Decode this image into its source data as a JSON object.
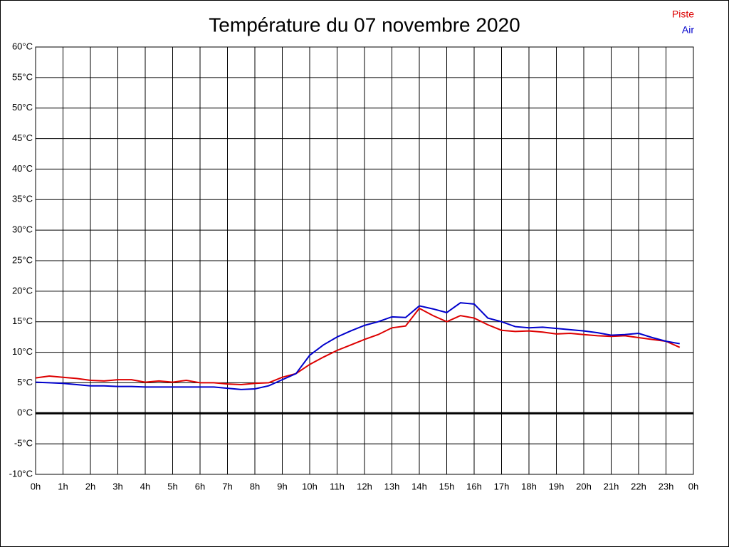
{
  "chart_data": {
    "type": "line",
    "title": "Température du 07 novembre 2020",
    "x": [
      0,
      0.5,
      1,
      1.5,
      2,
      2.5,
      3,
      3.5,
      4,
      4.5,
      5,
      5.5,
      6,
      6.5,
      7,
      7.5,
      8,
      8.5,
      9,
      9.5,
      10,
      10.5,
      11,
      11.5,
      12,
      12.5,
      13,
      13.5,
      14,
      14.5,
      15,
      15.5,
      16,
      16.5,
      17,
      17.5,
      18,
      18.5,
      19,
      19.5,
      20,
      20.5,
      21,
      21.5,
      22,
      22.5,
      23,
      23.5
    ],
    "series": [
      {
        "name": "Piste",
        "color": "#dd0000",
        "values": [
          5.8,
          6.1,
          5.9,
          5.7,
          5.4,
          5.3,
          5.5,
          5.5,
          5.1,
          5.3,
          5.1,
          5.4,
          5.0,
          5.0,
          4.8,
          4.7,
          4.9,
          5.0,
          5.9,
          6.5,
          8.0,
          9.2,
          10.3,
          11.2,
          12.1,
          12.9,
          14.0,
          14.3,
          17.2,
          16.0,
          15.0,
          16.0,
          15.6,
          14.5,
          13.6,
          13.4,
          13.5,
          13.3,
          13.0,
          13.1,
          12.9,
          12.7,
          12.6,
          12.7,
          12.4,
          12.1,
          11.8,
          10.8
        ]
      },
      {
        "name": "Air",
        "color": "#0000cc",
        "values": [
          5.1,
          5.0,
          4.9,
          4.7,
          4.5,
          4.5,
          4.4,
          4.4,
          4.3,
          4.3,
          4.3,
          4.3,
          4.3,
          4.3,
          4.1,
          3.9,
          4.0,
          4.5,
          5.5,
          6.5,
          9.5,
          11.2,
          12.5,
          13.5,
          14.4,
          15.0,
          15.8,
          15.7,
          17.6,
          17.1,
          16.5,
          18.1,
          17.9,
          15.6,
          15.0,
          14.2,
          14.0,
          14.1,
          13.9,
          13.7,
          13.5,
          13.2,
          12.8,
          12.9,
          13.1,
          12.4,
          11.8,
          11.4
        ]
      }
    ],
    "xlim": [
      0,
      24
    ],
    "xticks": [
      {
        "value": 0,
        "label": "0h"
      },
      {
        "value": 1,
        "label": "1h"
      },
      {
        "value": 2,
        "label": "2h"
      },
      {
        "value": 3,
        "label": "3h"
      },
      {
        "value": 4,
        "label": "4h"
      },
      {
        "value": 5,
        "label": "5h"
      },
      {
        "value": 6,
        "label": "6h"
      },
      {
        "value": 7,
        "label": "7h"
      },
      {
        "value": 8,
        "label": "8h"
      },
      {
        "value": 9,
        "label": "9h"
      },
      {
        "value": 10,
        "label": "10h"
      },
      {
        "value": 11,
        "label": "11h"
      },
      {
        "value": 12,
        "label": "12h"
      },
      {
        "value": 13,
        "label": "13h"
      },
      {
        "value": 14,
        "label": "14h"
      },
      {
        "value": 15,
        "label": "15h"
      },
      {
        "value": 16,
        "label": "16h"
      },
      {
        "value": 17,
        "label": "17h"
      },
      {
        "value": 18,
        "label": "18h"
      },
      {
        "value": 19,
        "label": "19h"
      },
      {
        "value": 20,
        "label": "20h"
      },
      {
        "value": 21,
        "label": "21h"
      },
      {
        "value": 22,
        "label": "22h"
      },
      {
        "value": 23,
        "label": "23h"
      },
      {
        "value": 24,
        "label": "0h"
      }
    ],
    "ylim": [
      -10,
      60
    ],
    "yticks": [
      {
        "value": -10,
        "label": "-10°C"
      },
      {
        "value": -5,
        "label": "-5°C"
      },
      {
        "value": 0,
        "label": "0°C"
      },
      {
        "value": 5,
        "label": "5°C"
      },
      {
        "value": 10,
        "label": "10°C"
      },
      {
        "value": 15,
        "label": "15°C"
      },
      {
        "value": 20,
        "label": "20°C"
      },
      {
        "value": 25,
        "label": "25°C"
      },
      {
        "value": 30,
        "label": "30°C"
      },
      {
        "value": 35,
        "label": "35°C"
      },
      {
        "value": 40,
        "label": "40°C"
      },
      {
        "value": 45,
        "label": "45°C"
      },
      {
        "value": 50,
        "label": "50°C"
      },
      {
        "value": 55,
        "label": "55°C"
      },
      {
        "value": 60,
        "label": "60°C"
      }
    ],
    "grid": true,
    "legend": "top-right"
  }
}
